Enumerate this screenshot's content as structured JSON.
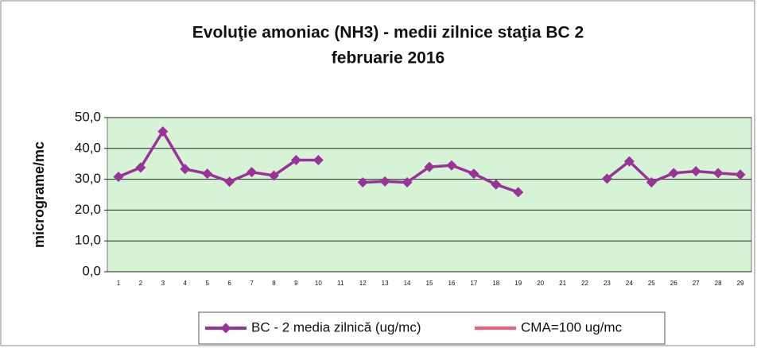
{
  "chart_data": {
    "type": "line",
    "title": "Evoluţie amoniac (NH3) - medii zilnice staţia BC 2",
    "subtitle": "februarie 2016",
    "y_label": "micrograme/mc",
    "categories": [
      "1",
      "2",
      "3",
      "4",
      "5",
      "6",
      "7",
      "8",
      "9",
      "10",
      "11",
      "12",
      "13",
      "14",
      "15",
      "16",
      "17",
      "18",
      "19",
      "20",
      "21",
      "22",
      "23",
      "24",
      "25",
      "26",
      "27",
      "28",
      "29"
    ],
    "series": [
      {
        "name": "BC - 2 media zilnică (ug/mc)",
        "color": "#993399",
        "values": [
          30.8,
          33.8,
          45.5,
          33.3,
          31.8,
          29.2,
          32.3,
          31.2,
          36.2,
          36.2,
          null,
          29.0,
          29.3,
          29.0,
          34.0,
          34.5,
          31.8,
          28.3,
          25.8,
          null,
          null,
          null,
          30.2,
          35.8,
          29.0,
          32.0,
          32.6,
          32.0,
          31.5
        ]
      },
      {
        "name": "CMA=100 ug/mc",
        "color": "#ff5577"
      }
    ],
    "ylim": [
      0,
      50
    ],
    "yticks": [
      {
        "value": 0,
        "label": "0,0"
      },
      {
        "value": 10,
        "label": "10,0"
      },
      {
        "value": 20,
        "label": "20,0"
      },
      {
        "value": 30,
        "label": "30,0"
      },
      {
        "value": 40,
        "label": "40,0"
      },
      {
        "value": 50,
        "label": "50,0"
      }
    ],
    "grid": true,
    "plot_color": "#d6f3d6"
  }
}
